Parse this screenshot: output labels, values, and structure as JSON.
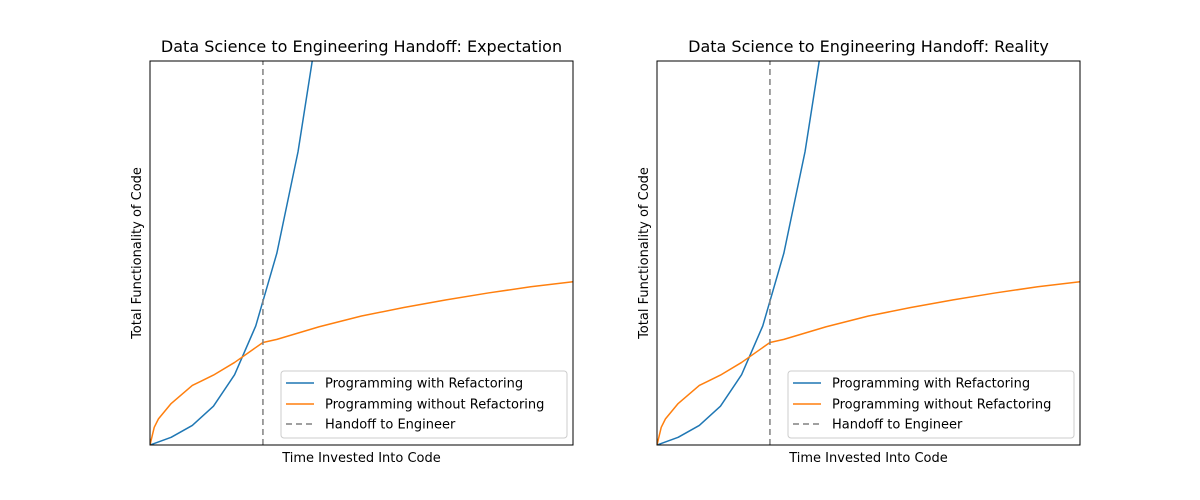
{
  "colors": {
    "with_refactoring": "#1f77b4",
    "without_refactoring": "#ff7f0e",
    "handoff": "#808080",
    "axes": "#000000",
    "legend_border": "#cccccc",
    "background": "#ffffff"
  },
  "chart_data": [
    {
      "type": "line",
      "title": "Data Science to Engineering Handoff: Expectation",
      "xlabel": "Time Invested Into Code",
      "ylabel": "Total Functionality of Code",
      "xlim": [
        0,
        100
      ],
      "ylim": [
        0,
        100
      ],
      "grid": false,
      "show_ticks": false,
      "legend_position": "lower-right",
      "series": [
        {
          "name": "Programming with Refactoring",
          "color_key": "with_refactoring",
          "style": "solid",
          "x": [
            0,
            5,
            10,
            15,
            20,
            25,
            30,
            35,
            40
          ],
          "y": [
            0,
            2.0,
            5.1,
            10.1,
            18.3,
            31.0,
            50.0,
            76.4,
            111.6
          ]
        },
        {
          "name": "Programming without Refactoring",
          "color_key": "without_refactoring",
          "style": "solid",
          "x": [
            0,
            1,
            2,
            5,
            10,
            15,
            20,
            26.7,
            30,
            40,
            50,
            60,
            70,
            80,
            90,
            100
          ],
          "y": [
            0,
            4.6,
            6.8,
            10.8,
            15.5,
            18.2,
            21.5,
            26.7,
            27.5,
            30.8,
            33.6,
            35.8,
            37.8,
            39.6,
            41.2,
            42.5
          ]
        },
        {
          "name": "Handoff to Engineer",
          "color_key": "handoff",
          "style": "dashed",
          "x": [
            26.7,
            26.7
          ],
          "y": [
            0,
            100
          ]
        }
      ]
    },
    {
      "type": "line",
      "title": "Data Science to Engineering Handoff: Reality",
      "xlabel": "Time Invested Into Code",
      "ylabel": "Total Functionality of Code",
      "xlim": [
        0,
        100
      ],
      "ylim": [
        0,
        100
      ],
      "grid": false,
      "show_ticks": false,
      "legend_position": "lower-right",
      "series": [
        {
          "name": "Programming with Refactoring",
          "color_key": "with_refactoring",
          "style": "solid",
          "x": [
            0,
            5,
            10,
            15,
            20,
            25,
            30,
            35,
            40
          ],
          "y": [
            0,
            2.0,
            5.1,
            10.1,
            18.3,
            31.0,
            50.0,
            76.4,
            111.6
          ]
        },
        {
          "name": "Programming without Refactoring",
          "color_key": "without_refactoring",
          "style": "solid",
          "x": [
            0,
            1,
            2,
            5,
            10,
            15,
            20,
            26.7,
            30,
            40,
            50,
            60,
            70,
            80,
            90,
            100
          ],
          "y": [
            0,
            4.6,
            6.8,
            10.8,
            15.5,
            18.2,
            21.5,
            26.7,
            27.5,
            30.8,
            33.6,
            35.8,
            37.8,
            39.6,
            41.2,
            42.5
          ]
        },
        {
          "name": "Handoff to Engineer",
          "color_key": "handoff",
          "style": "dashed",
          "x": [
            26.7,
            26.7
          ],
          "y": [
            0,
            100
          ]
        }
      ]
    }
  ]
}
